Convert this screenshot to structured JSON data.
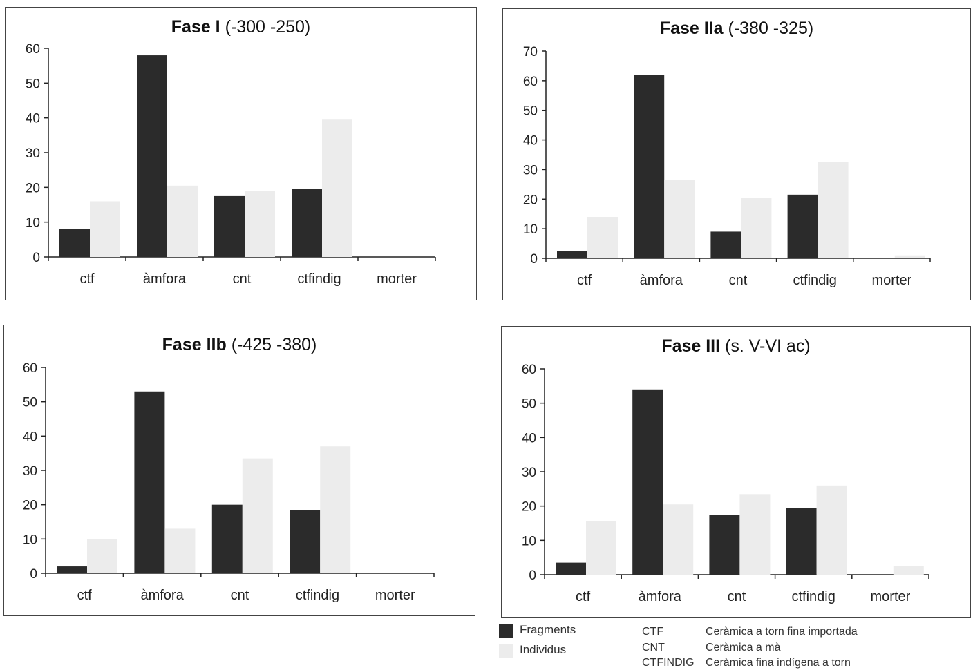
{
  "chart_data": [
    {
      "type": "bar",
      "title_bold": "Fase I",
      "title_rest": "(-300  -250)",
      "categories": [
        "ctf",
        "àmfora",
        "cnt",
        "ctfindig",
        "morter"
      ],
      "series": [
        {
          "name": "Fragments",
          "values": [
            8,
            58,
            17.5,
            19.5,
            0
          ]
        },
        {
          "name": "Individus",
          "values": [
            16,
            20.5,
            19,
            39.5,
            0
          ]
        }
      ],
      "ylim": [
        0,
        60
      ],
      "yticks": [
        0,
        10,
        20,
        30,
        40,
        50,
        60
      ]
    },
    {
      "type": "bar",
      "title_bold": "Fase IIa",
      "title_rest": "(-380  -325)",
      "categories": [
        "ctf",
        "àmfora",
        "cnt",
        "ctfindig",
        "morter"
      ],
      "series": [
        {
          "name": "Fragments",
          "values": [
            2.5,
            62,
            9,
            21.5,
            0
          ]
        },
        {
          "name": "Individus",
          "values": [
            14,
            26.5,
            20.5,
            32.5,
            1
          ]
        }
      ],
      "ylim": [
        0,
        70
      ],
      "yticks": [
        0,
        10,
        20,
        30,
        40,
        50,
        60,
        70
      ]
    },
    {
      "type": "bar",
      "title_bold": "Fase IIb",
      "title_rest": "(-425  -380)",
      "categories": [
        "ctf",
        "àmfora",
        "cnt",
        "ctfindig",
        "morter"
      ],
      "series": [
        {
          "name": "Fragments",
          "values": [
            2,
            53,
            20,
            18.5,
            0
          ]
        },
        {
          "name": "Individus",
          "values": [
            10,
            13,
            33.5,
            37,
            0
          ]
        }
      ],
      "ylim": [
        0,
        60
      ],
      "yticks": [
        0,
        10,
        20,
        30,
        40,
        50,
        60
      ]
    },
    {
      "type": "bar",
      "title_bold": "Fase III",
      "title_rest": "(s. V-VI ac)",
      "categories": [
        "ctf",
        "àmfora",
        "cnt",
        "ctfindig",
        "morter"
      ],
      "series": [
        {
          "name": "Fragments",
          "values": [
            3.5,
            54,
            17.5,
            19.5,
            0
          ]
        },
        {
          "name": "Individus",
          "values": [
            15.5,
            20.5,
            23.5,
            26,
            2.5
          ]
        }
      ],
      "ylim": [
        0,
        60
      ],
      "yticks": [
        0,
        10,
        20,
        30,
        40,
        50,
        60
      ]
    }
  ],
  "legend": {
    "items": [
      {
        "label": "Fragments",
        "color": "#2b2b2b"
      },
      {
        "label": "Individus",
        "color": "#ececec"
      }
    ],
    "abbreviations": [
      {
        "abbr": "CTF",
        "meaning": "Ceràmica a torn fina importada"
      },
      {
        "abbr": "CNT",
        "meaning": "Ceràmica a mà"
      },
      {
        "abbr": "CTFINDIG",
        "meaning": "Ceràmica fina indígena a torn"
      }
    ]
  },
  "colors": {
    "fragments": "#2b2b2b",
    "individus": "#ececec",
    "axis": "#222222"
  }
}
